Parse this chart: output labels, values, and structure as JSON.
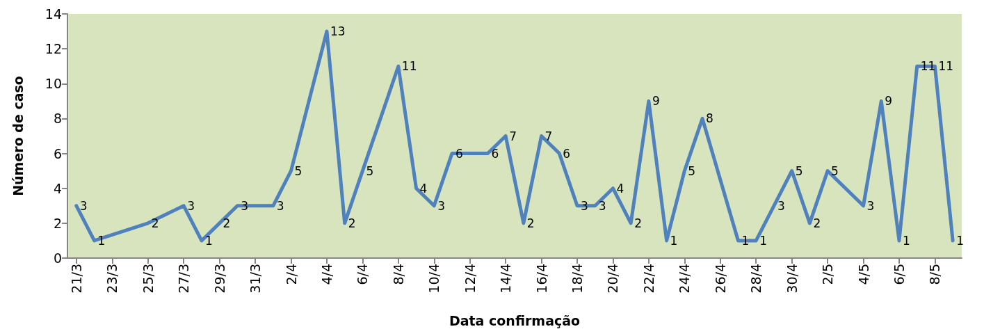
{
  "chart_data": {
    "type": "line",
    "xlabel": "Data confirmação",
    "ylabel": "Número de caso",
    "x": [
      "--03-21",
      "--03-22",
      "--03-25",
      "--03-27",
      "--03-28",
      "--03-29",
      "--03-30",
      "--04-01",
      "--04-02",
      "--04-04",
      "--04-05",
      "--04-06",
      "--04-08",
      "--04-09",
      "--04-10",
      "--04-11",
      "--04-13",
      "--04-14",
      "--04-15",
      "--04-16",
      "--04-17",
      "--04-18",
      "--04-19",
      "--04-20",
      "--04-21",
      "--04-22",
      "--04-23",
      "--04-24",
      "--04-25",
      "--04-27",
      "--04-28",
      "--04-29",
      "--04-30",
      "--05-01",
      "--05-02",
      "--05-04",
      "--05-05",
      "--05-06",
      "--05-07",
      "--05-08",
      "--05-09"
    ],
    "series": [
      {
        "color": "#4f81bd",
        "values": [
          3,
          1,
          2,
          3,
          1,
          2,
          3,
          3,
          5,
          13,
          2,
          5,
          11,
          4,
          3,
          6,
          6,
          7,
          2,
          7,
          6,
          3,
          3,
          4,
          2,
          9,
          1,
          5,
          8,
          1,
          1,
          3,
          5,
          2,
          5,
          3,
          9,
          1,
          11,
          11,
          1
        ]
      }
    ],
    "xlim": [
      "--03-20T12:00",
      "--05-09T12:00"
    ],
    "xticks": [
      {
        "value": "--03-21",
        "label": "21/3"
      },
      {
        "value": "--03-23",
        "label": "23/3"
      },
      {
        "value": "--03-25",
        "label": "25/3"
      },
      {
        "value": "--03-27",
        "label": "27/3"
      },
      {
        "value": "--03-29",
        "label": "29/3"
      },
      {
        "value": "--03-31",
        "label": "31/3"
      },
      {
        "value": "--04-02",
        "label": "2/4"
      },
      {
        "value": "--04-04",
        "label": "4/4"
      },
      {
        "value": "--04-06",
        "label": "6/4"
      },
      {
        "value": "--04-08",
        "label": "8/4"
      },
      {
        "value": "--04-10",
        "label": "10/4"
      },
      {
        "value": "--04-12",
        "label": "12/4"
      },
      {
        "value": "--04-14",
        "label": "14/4"
      },
      {
        "value": "--04-16",
        "label": "16/4"
      },
      {
        "value": "--04-18",
        "label": "18/4"
      },
      {
        "value": "--04-20",
        "label": "20/4"
      },
      {
        "value": "--04-22",
        "label": "22/4"
      },
      {
        "value": "--04-24",
        "label": "24/4"
      },
      {
        "value": "--04-26",
        "label": "26/4"
      },
      {
        "value": "--04-28",
        "label": "28/4"
      },
      {
        "value": "--04-30",
        "label": "30/4"
      },
      {
        "value": "--05-02",
        "label": "2/5"
      },
      {
        "value": "--05-04",
        "label": "4/5"
      },
      {
        "value": "--05-06",
        "label": "6/5"
      },
      {
        "value": "--05-08",
        "label": "8/5"
      }
    ],
    "ylim": [
      0,
      14
    ],
    "yticks": [
      0,
      2,
      4,
      6,
      8,
      10,
      12,
      14
    ],
    "grid": false,
    "marker": "none",
    "line_style": "solid",
    "data_labels": true
  }
}
